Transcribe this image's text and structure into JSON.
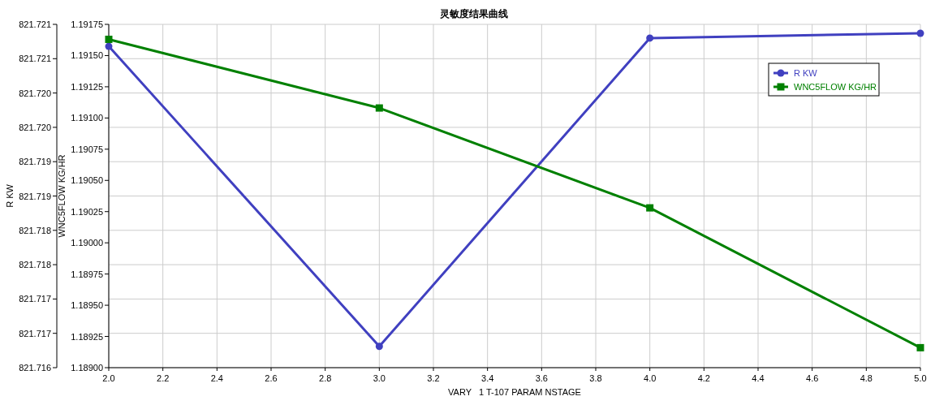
{
  "chart_data": {
    "type": "line",
    "title": "灵敏度结果曲线",
    "xlabel": "VARY   1 T-107 PARAM NSTAGE",
    "ylabel": "R KW",
    "y2label": "WNC5FLOW KG/HR",
    "x": [
      2,
      3,
      4,
      5
    ],
    "xlim": [
      2,
      5
    ],
    "xticks": [
      {
        "value": 2,
        "label": "2.0"
      },
      {
        "value": 2.2,
        "label": "2.2"
      },
      {
        "value": 2.4,
        "label": "2.4"
      },
      {
        "value": 2.6,
        "label": "2.6"
      },
      {
        "value": 2.8,
        "label": "2.8"
      },
      {
        "value": 3,
        "label": "3.0"
      },
      {
        "value": 3.2,
        "label": "3.2"
      },
      {
        "value": 3.4,
        "label": "3.4"
      },
      {
        "value": 3.6,
        "label": "3.6"
      },
      {
        "value": 3.8,
        "label": "3.8"
      },
      {
        "value": 4,
        "label": "4.0"
      },
      {
        "value": 4.2,
        "label": "4.2"
      },
      {
        "value": 4.4,
        "label": "4.4"
      },
      {
        "value": 4.6,
        "label": "4.6"
      },
      {
        "value": 4.8,
        "label": "4.8"
      },
      {
        "value": 5,
        "label": "5.0"
      }
    ],
    "ylim": [
      821.716,
      821.721
    ],
    "yticks": [
      {
        "value": 821.716,
        "label": "821.716"
      },
      {
        "value": 821.7165,
        "label": "821.717"
      },
      {
        "value": 821.717,
        "label": "821.717"
      },
      {
        "value": 821.7175,
        "label": "821.718"
      },
      {
        "value": 821.718,
        "label": "821.718"
      },
      {
        "value": 821.7185,
        "label": "821.719"
      },
      {
        "value": 821.719,
        "label": "821.719"
      },
      {
        "value": 821.7195,
        "label": "821.720"
      },
      {
        "value": 821.72,
        "label": "821.720"
      },
      {
        "value": 821.7205,
        "label": "821.721"
      },
      {
        "value": 821.721,
        "label": "821.721"
      }
    ],
    "y2lim": [
      1.189,
      1.19175
    ],
    "y2ticks": [
      {
        "value": 1.189,
        "label": "1.18900"
      },
      {
        "value": 1.18925,
        "label": "1.18925"
      },
      {
        "value": 1.1895,
        "label": "1.18950"
      },
      {
        "value": 1.18975,
        "label": "1.18975"
      },
      {
        "value": 1.19,
        "label": "1.19000"
      },
      {
        "value": 1.19025,
        "label": "1.19025"
      },
      {
        "value": 1.1905,
        "label": "1.19050"
      },
      {
        "value": 1.19075,
        "label": "1.19075"
      },
      {
        "value": 1.191,
        "label": "1.19100"
      },
      {
        "value": 1.19125,
        "label": "1.19125"
      },
      {
        "value": 1.1915,
        "label": "1.19150"
      },
      {
        "value": 1.19175,
        "label": "1.19175"
      }
    ],
    "grid": true,
    "legend": "top right",
    "line_style": "solid",
    "series": [
      {
        "name": "R KW",
        "color": "#4040c0",
        "marker": "circle",
        "values": [
          821.72068,
          821.71631,
          821.7208,
          821.72087
        ]
      },
      {
        "name": "WNC5FLOW KG/HR",
        "color": "#008000",
        "marker": "square",
        "axis": "y2",
        "values": [
          1.19163,
          1.19108,
          1.19028,
          1.18916
        ]
      }
    ]
  }
}
